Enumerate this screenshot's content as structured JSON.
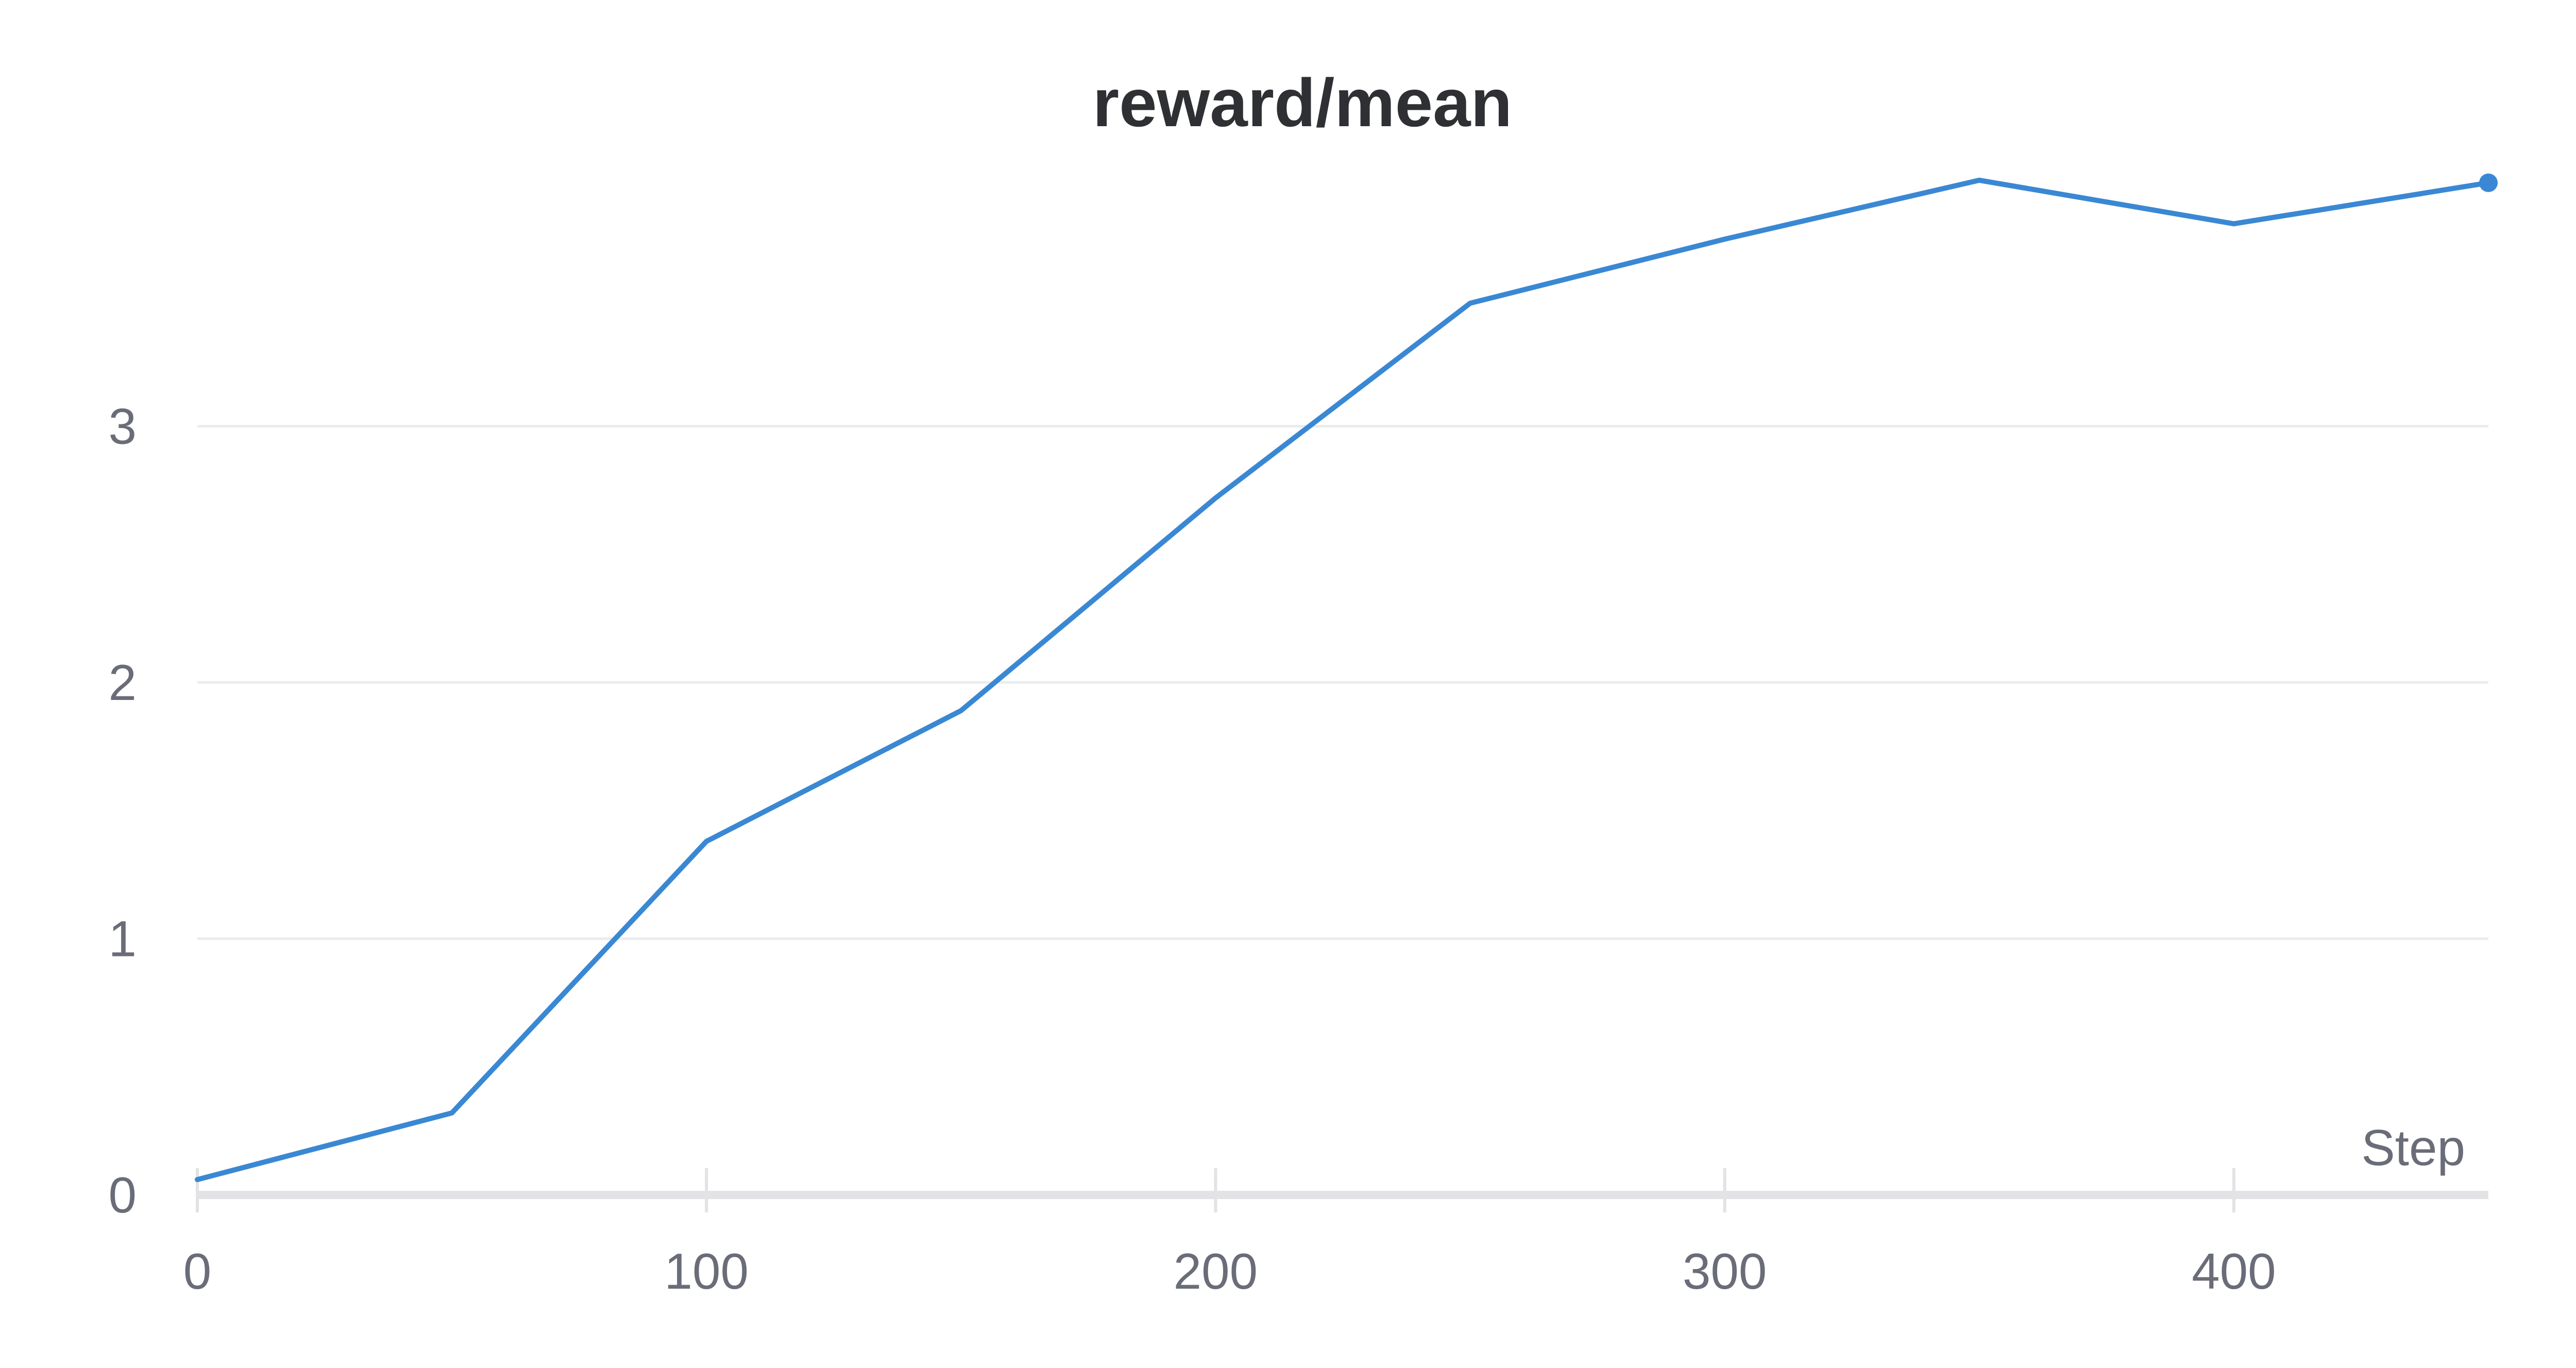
{
  "chart_data": {
    "type": "line",
    "title": "reward/mean",
    "xlabel": "Step",
    "ylabel": "",
    "xlim": [
      0,
      450
    ],
    "ylim": [
      0,
      4
    ],
    "x_ticks": [
      0,
      100,
      200,
      300,
      400
    ],
    "y_ticks": [
      0,
      1,
      2,
      3
    ],
    "grid": "horizontal",
    "legend": "none",
    "series": [
      {
        "color": "#3a88d3",
        "x": [
          0,
          50,
          100,
          150,
          200,
          250,
          300,
          350,
          400,
          450
        ],
        "y": [
          0.06,
          0.32,
          1.38,
          1.89,
          2.72,
          3.48,
          3.73,
          3.96,
          3.79,
          3.95
        ]
      }
    ]
  },
  "colors": {
    "line": "#3a88d3",
    "grid": "#ececee",
    "axis": "#e3e3e5",
    "tick_text": "#6a6d78",
    "title_text": "#2f3033"
  }
}
